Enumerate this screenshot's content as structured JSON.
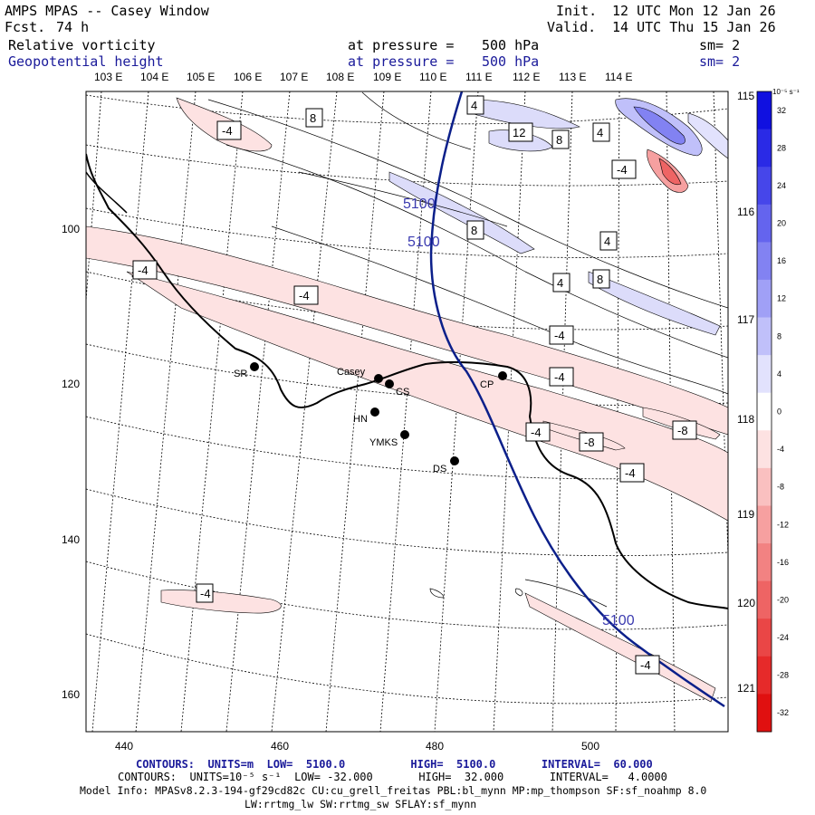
{
  "header": {
    "title": "AMPS MPAS -- Casey Window",
    "fcst_label": "Fcst.",
    "fcst_value": "74 h",
    "init_label": "Init.",
    "init_value": "12 UTC Mon 12 Jan 26",
    "valid_label": "Valid.",
    "valid_value": "14 UTC Thu 15 Jan 26",
    "field1": "Relative vorticity",
    "field2": "Geopotential height",
    "pressure_label": "at pressure =",
    "pressure_value": "500 hPa",
    "smoothing": "sm= 2"
  },
  "axes": {
    "top_lon": [
      "103 E",
      "104 E",
      "105 E",
      "106 E",
      "107 E",
      "108 E",
      "109 E",
      "110 E",
      "111 E",
      "112 E",
      "113 E",
      "114 E",
      "115 E"
    ],
    "right_lon": [
      "116 E",
      "117 E",
      "118 E",
      "119 E",
      "120 E",
      "121 E"
    ],
    "x_ticks": [
      "440",
      "460",
      "480",
      "500"
    ],
    "y_ticks": [
      "100",
      "120",
      "140",
      "160"
    ]
  },
  "stations": [
    {
      "id": "SR"
    },
    {
      "id": "Casey"
    },
    {
      "id": "CS"
    },
    {
      "id": "CP"
    },
    {
      "id": "HN"
    },
    {
      "id": "YMKS"
    },
    {
      "id": "DS"
    }
  ],
  "contour_labels": {
    "vort": [
      "-4",
      "8",
      "4",
      "12",
      "8",
      "4",
      "-4",
      "8",
      "-4",
      "4",
      "8",
      "-4",
      "4",
      "-4",
      "-4",
      "-4",
      "-8",
      "-8",
      "-4",
      "-4",
      "-4"
    ],
    "height": [
      "5100",
      "5100",
      "5100"
    ]
  },
  "colorbar": {
    "units": "10⁻⁵ s⁻¹",
    "labels": [
      "32",
      "28",
      "24",
      "20",
      "16",
      "12",
      "8",
      "4",
      "0",
      "-4",
      "-8",
      "-12",
      "-16",
      "-20",
      "-24",
      "-28",
      "-32"
    ],
    "colors": [
      "#1010e0",
      "#2a2ae6",
      "#4646ea",
      "#6464ee",
      "#8282f2",
      "#a0a0f6",
      "#c0c0fa",
      "#e2e2fd",
      "#ffffff",
      "#fde2e2",
      "#fac0c0",
      "#f6a0a0",
      "#f28282",
      "#ee6464",
      "#ea4646",
      "#e62a2a",
      "#e01010"
    ]
  },
  "footer": {
    "line1": "CONTOURS:  UNITS=m  LOW=  5100.0          HIGH=  5100.0       INTERVAL=  60.000",
    "line2": "CONTOURS:  UNITS=10⁻⁵ s⁻¹  LOW= -32.000       HIGH=  32.000       INTERVAL=   4.0000",
    "line3": "Model Info: MPASv8.2.3-194-gf29cd82c CU:cu_grell_freitas PBL:bl_mynn MP:mp_thompson SF:sf_noahmp 8.0",
    "line4": "LW:rrtmg_lw SW:rrtmg_sw SFLAY:sf_mynn"
  }
}
